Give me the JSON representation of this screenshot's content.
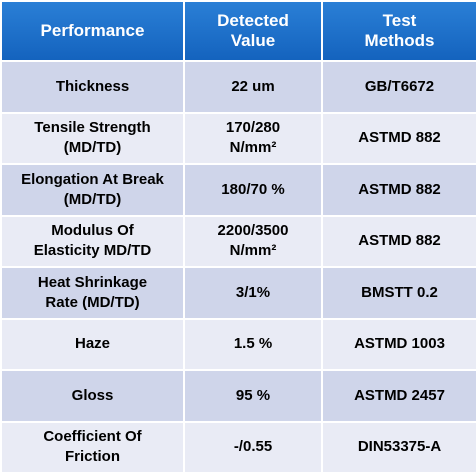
{
  "table": {
    "header": [
      "Performance",
      "Detected Value",
      "Test Methods"
    ],
    "rows": [
      [
        "Thickness",
        "22 um",
        "GB/T6672"
      ],
      [
        "Tensile Strength (MD/TD)",
        "170/280 N/mm²",
        "ASTMD 882"
      ],
      [
        "Elongation At Break (MD/TD)",
        "180/70 %",
        "ASTMD 882"
      ],
      [
        "Modulus Of Elasticity MD/TD",
        "2200/3500 N/mm²",
        "ASTMD 882"
      ],
      [
        "Heat Shrinkage Rate (MD/TD)",
        "3/1%",
        "BMSTT 0.2"
      ],
      [
        "Haze",
        "1.5 %",
        "ASTMD 1003"
      ],
      [
        "Gloss",
        "95 %",
        "ASTMD 2457"
      ],
      [
        "Coefficient Of Friction",
        "-/0.55",
        "DIN53375-A"
      ]
    ]
  }
}
